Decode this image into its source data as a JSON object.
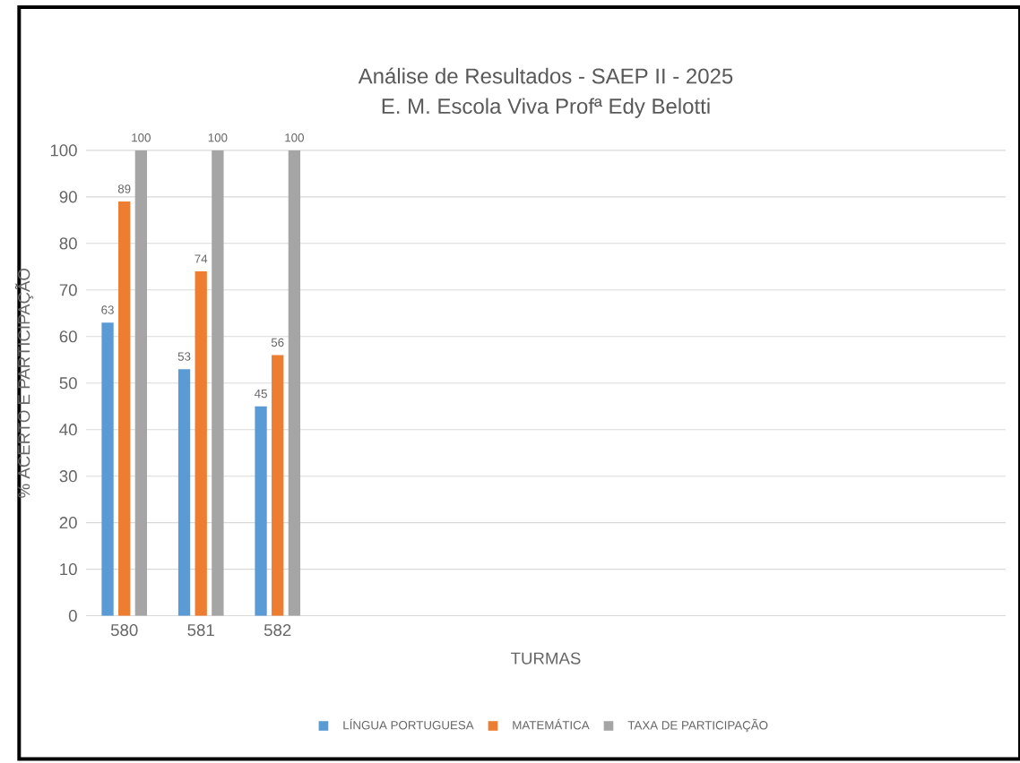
{
  "chart_data": {
    "type": "bar",
    "title": "Análise de Resultados - SAEP II - 2025",
    "subtitle": "E. M. Escola Viva Profª Edy Belotti",
    "xlabel": "TURMAS",
    "ylabel": "% ACERTO E PARTICIPAÇÃO",
    "categories": [
      "580",
      "581",
      "582",
      null,
      null,
      null,
      null,
      null,
      null,
      null,
      null,
      null
    ],
    "series": [
      {
        "name": "LÍNGUA PORTUGUESA",
        "color": "#5b9bd5",
        "values": [
          63,
          53,
          45,
          null,
          null,
          null,
          null,
          null,
          null,
          null,
          null,
          null
        ]
      },
      {
        "name": "MATEMÁTICA",
        "color": "#ed7d31",
        "values": [
          89,
          74,
          56,
          null,
          null,
          null,
          null,
          null,
          null,
          null,
          null,
          null
        ]
      },
      {
        "name": "TAXA DE PARTICIPAÇÃO",
        "color": "#a5a5a5",
        "values": [
          100,
          100,
          100,
          null,
          null,
          null,
          null,
          null,
          null,
          null,
          null,
          null
        ]
      }
    ],
    "ylim": [
      0,
      100
    ],
    "yticks": [
      0,
      10,
      20,
      30,
      40,
      50,
      60,
      70,
      80,
      90,
      100
    ],
    "grid": "y",
    "legend": "bottom",
    "data_labels": true
  }
}
